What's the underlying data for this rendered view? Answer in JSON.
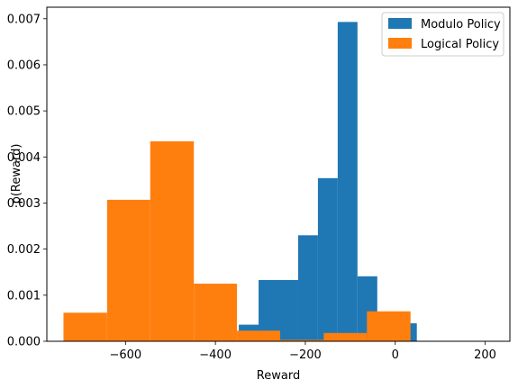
{
  "chart_data": {
    "type": "histogram",
    "title": "",
    "xlabel": "Reward",
    "ylabel": "p(Reward)",
    "xlim": [
      -775,
      255
    ],
    "ylim": [
      0,
      0.00725
    ],
    "xticks": [
      {
        "value": -600,
        "label": "−600"
      },
      {
        "value": -400,
        "label": "−400"
      },
      {
        "value": -200,
        "label": "−200"
      },
      {
        "value": 0,
        "label": "0"
      },
      {
        "value": 200,
        "label": "200"
      }
    ],
    "yticks": [
      {
        "value": 0,
        "label": "0.000"
      },
      {
        "value": 0.001,
        "label": "0.001"
      },
      {
        "value": 0.002,
        "label": "0.002"
      },
      {
        "value": 0.003,
        "label": "0.003"
      },
      {
        "value": 0.004,
        "label": "0.004"
      },
      {
        "value": 0.005,
        "label": "0.005"
      },
      {
        "value": 0.006,
        "label": "0.006"
      },
      {
        "value": 0.007,
        "label": "0.007"
      }
    ],
    "grid": false,
    "legend": "top-right",
    "series": [
      {
        "name": "Modulo Policy",
        "color": "#1f77b4",
        "bin_edges": [
          -348,
          -304,
          -260,
          -216,
          -172,
          -128,
          -84,
          -40,
          4,
          48
        ],
        "values": [
          0.00036,
          0.00133,
          0.00133,
          0.0023,
          0.00354,
          0.00693,
          0.00141,
          0.00039,
          0.00039
        ]
      },
      {
        "name": "Logical Policy",
        "color": "#ff7f0e",
        "bin_edges": [
          -738,
          -641,
          -545,
          -448,
          -352,
          -256,
          -159,
          -63,
          34,
          130,
          227
        ],
        "values": [
          0.00062,
          0.00307,
          0.00434,
          0.00125,
          0.00023,
          3e-05,
          0.00018,
          0.00065,
          1e-05,
          1e-05
        ]
      }
    ]
  }
}
